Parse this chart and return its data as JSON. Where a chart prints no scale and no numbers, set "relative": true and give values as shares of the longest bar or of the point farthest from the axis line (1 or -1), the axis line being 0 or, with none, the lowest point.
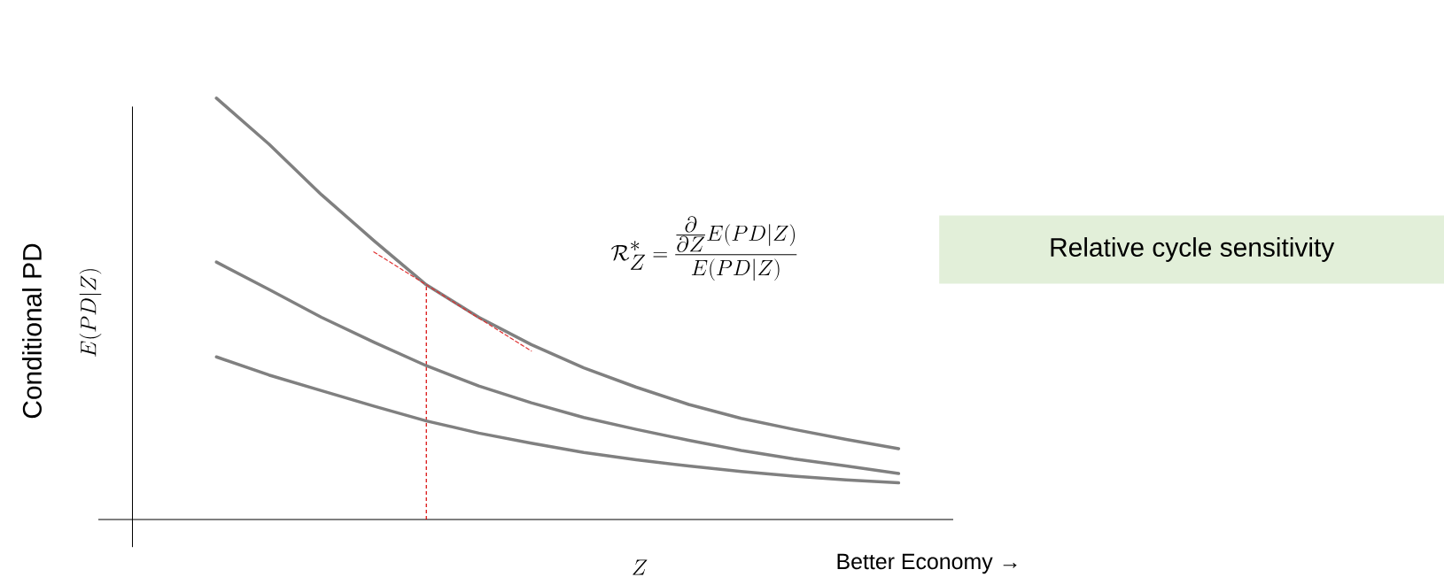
{
  "chart_data": {
    "type": "line",
    "relative": true,
    "xlabel": "Z",
    "marker": "none",
    "categories": [
      null,
      null,
      null,
      null,
      null,
      null,
      null,
      null,
      null,
      null,
      null,
      null,
      null,
      null
    ],
    "series": [
      {
        "color": "#808080",
        "values": [
          1,
          0.891,
          0.771,
          0.662,
          0.557,
          0.48,
          0.415,
          0.36,
          0.314,
          0.273,
          0.24,
          0.214,
          0.19,
          0.168
        ]
      },
      {
        "color": "#808080",
        "values": [
          0.611,
          0.546,
          0.48,
          0.421,
          0.365,
          0.317,
          0.277,
          0.242,
          0.214,
          0.188,
          0.164,
          0.144,
          0.127,
          0.109
        ]
      },
      {
        "color": "#808080",
        "values": [
          0.386,
          0.343,
          0.306,
          0.269,
          0.234,
          0.205,
          0.181,
          0.159,
          0.142,
          0.127,
          0.114,
          0.103,
          0.094,
          0.087
        ]
      },
      {
        "type": "line",
        "color": "#e03030",
        "line_style": "dashed",
        "values": [
          null,
          null,
          null,
          0.635,
          0.557,
          0.478,
          0.4,
          null,
          null,
          null,
          null,
          null,
          null,
          null
        ]
      }
    ],
    "annotations": [
      "Conditional PD",
      "E(PD|Z)",
      "\\mathcal{R}_Z^* = \\frac{\\frac{\\partial}{\\partial Z}E(PD|Z)}{E(PD|Z)}",
      "Better Economy →",
      "Relative cycle sensitivity"
    ]
  }
}
